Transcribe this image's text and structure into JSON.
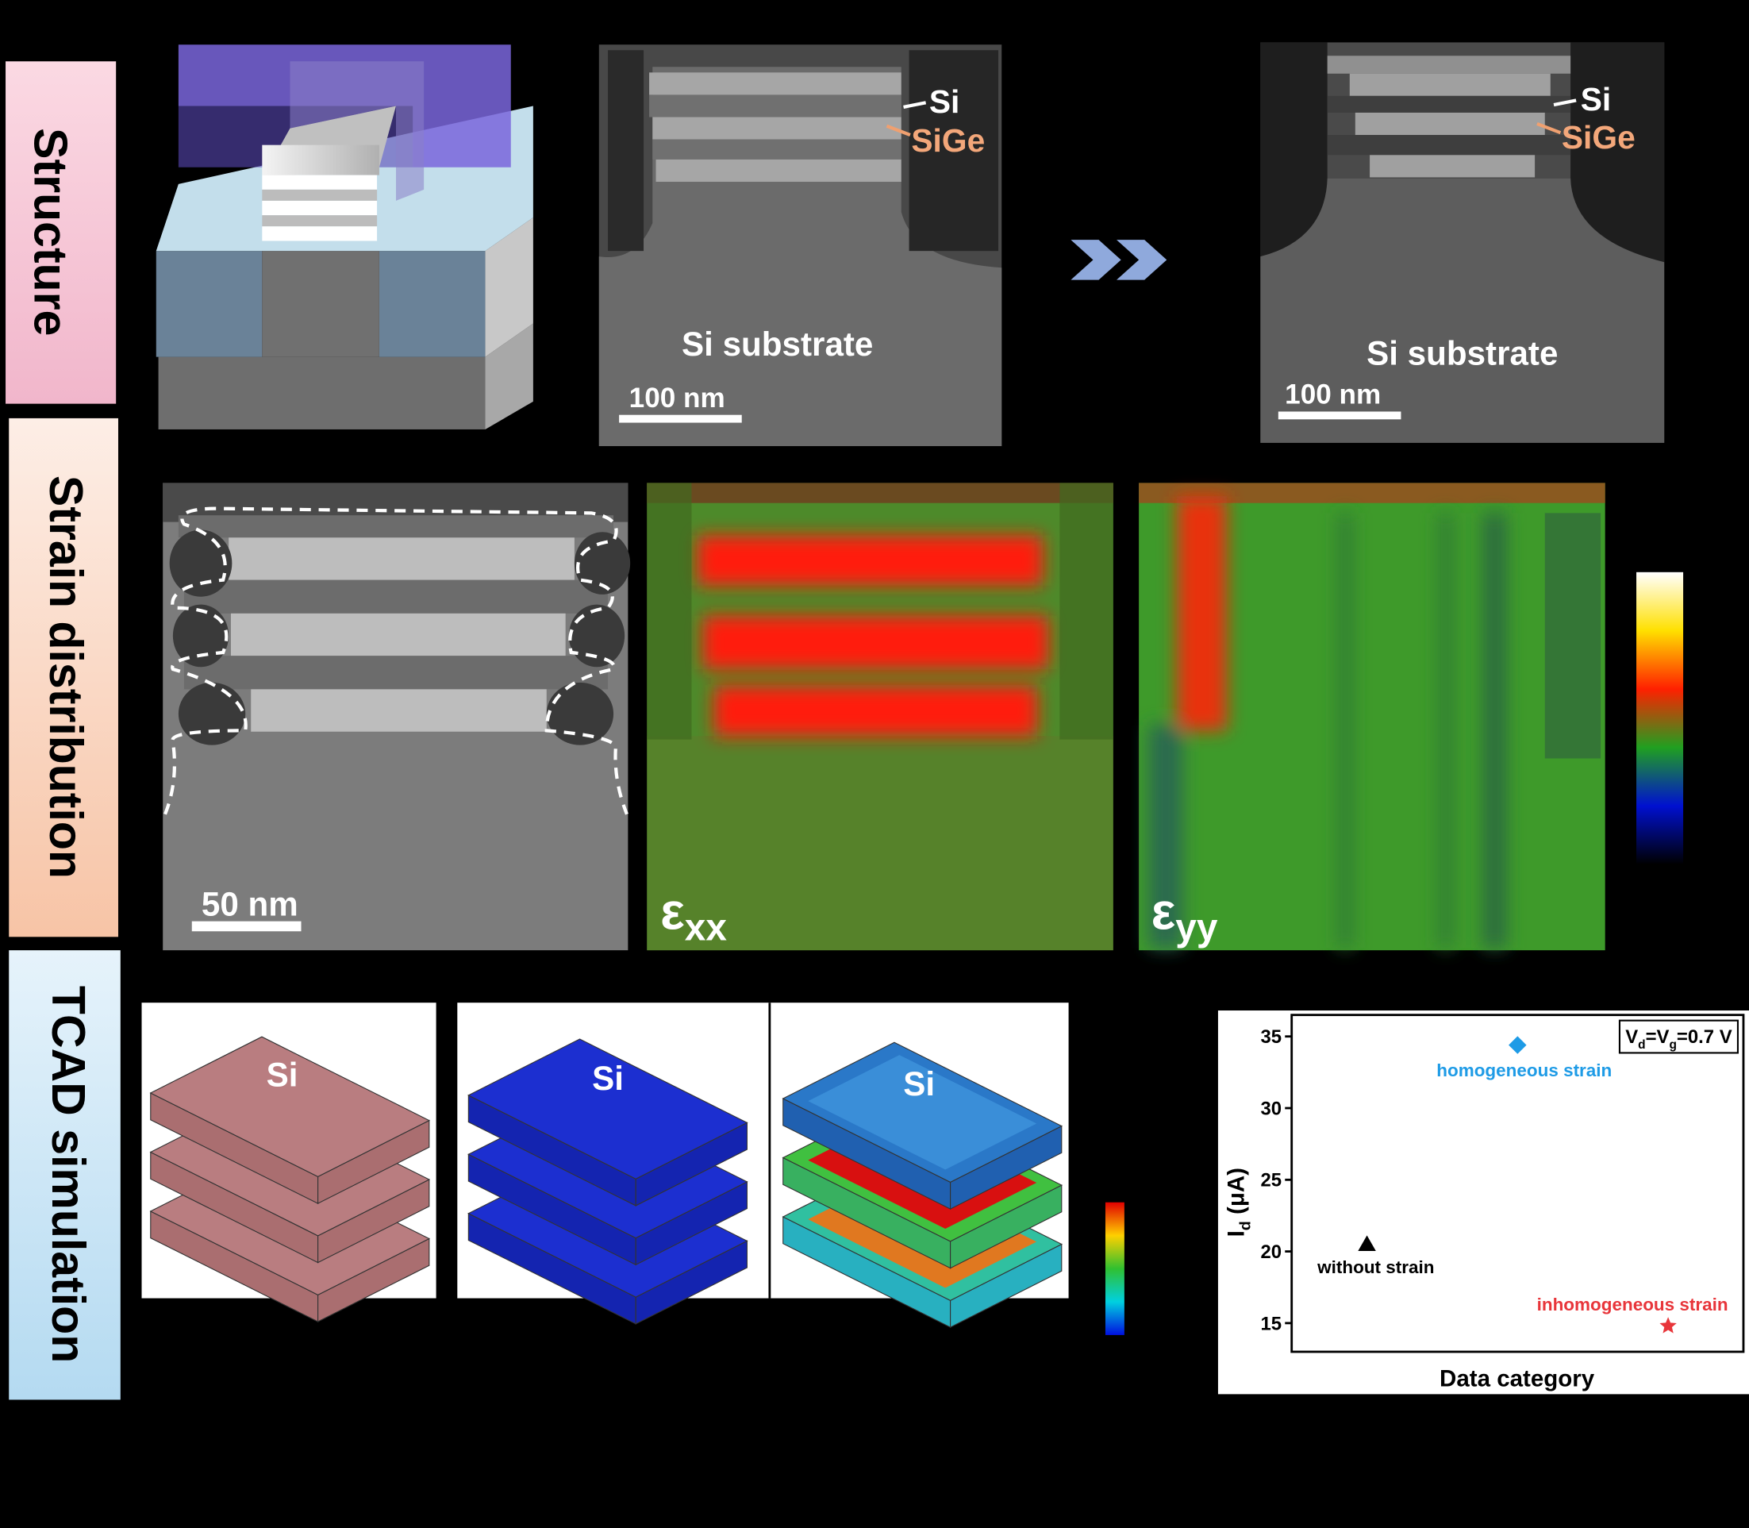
{
  "row_labels": [
    "Structure",
    "Strain distribution",
    "TCAD simulation"
  ],
  "structure": {
    "tem_before": {
      "labels": [
        "Si",
        "SiGe"
      ],
      "substrate": "Si substrate",
      "scale_bar": "100 nm"
    },
    "tem_after": {
      "labels": [
        "Si",
        "SiGe"
      ],
      "substrate": "Si substrate",
      "scale_bar": "100 nm"
    }
  },
  "strain": {
    "scale_bar": "50 nm",
    "maps": [
      {
        "symbol": "ε",
        "subscript": "xx"
      },
      {
        "symbol": "ε",
        "subscript": "yy"
      }
    ]
  },
  "tcad": {
    "labels": [
      "Si",
      "Si",
      "Si"
    ]
  },
  "chart_data": {
    "type": "scatter",
    "annotation": [
      "V",
      "d",
      "=V",
      "g",
      "=0.7 V"
    ],
    "y_label": [
      "I",
      "d",
      " (μA)"
    ],
    "x_label": "Data category",
    "categories": [
      "without strain",
      "homogeneous strain",
      "inhomogeneous strain"
    ],
    "values": [
      20.5,
      34.4,
      14.8
    ],
    "colors": [
      "#000000",
      "#1e9be6",
      "#e8353a"
    ],
    "markers": [
      "triangle",
      "diamond",
      "star"
    ],
    "ylim": [
      13,
      36.5
    ],
    "yticks": [
      15,
      20,
      25,
      30,
      35
    ]
  }
}
